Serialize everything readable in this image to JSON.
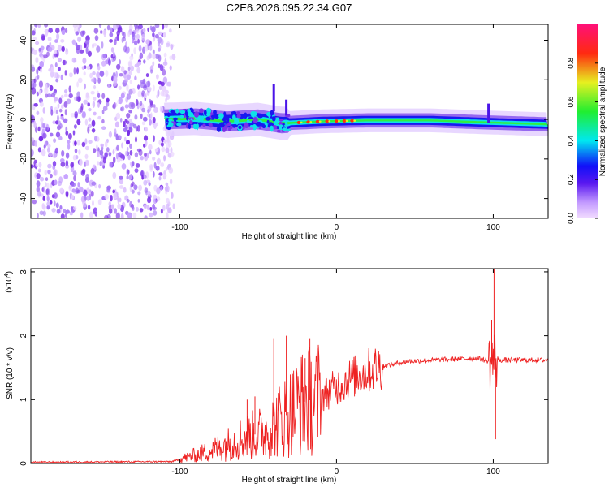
{
  "title": "C2E6.2026.095.22.34.G07",
  "chart_data": [
    {
      "type": "heatmap",
      "id": "spectrogram",
      "xlabel": "Height of straight line (km)",
      "ylabel": "Frequency (Hz)",
      "xlim": [
        -195,
        135
      ],
      "ylim": [
        -50,
        48
      ],
      "xticks": [
        -100,
        0,
        100
      ],
      "yticks": [
        -40,
        -20,
        0,
        20,
        40
      ],
      "noise_region": [
        -195,
        -110
      ],
      "tone_ridge": [
        {
          "x": -110,
          "y": 0
        },
        {
          "x": -90,
          "y": 0.5
        },
        {
          "x": -70,
          "y": -1
        },
        {
          "x": -50,
          "y": 0
        },
        {
          "x": -35,
          "y": -2
        },
        {
          "x": -10,
          "y": -1
        },
        {
          "x": 20,
          "y": -0.5
        },
        {
          "x": 60,
          "y": -0.5
        },
        {
          "x": 95,
          "y": -1.5
        },
        {
          "x": 135,
          "y": -2.5
        }
      ],
      "colorbar": {
        "label": "Normalized spectral amplitude",
        "range": [
          0,
          1
        ],
        "ticks": [
          0.0,
          0.2,
          0.4,
          0.6,
          0.8
        ]
      }
    },
    {
      "type": "line",
      "id": "snr",
      "xlabel": "Height of straight line (km)",
      "ylabel": "SNR (10 * v/v)",
      "multiplier": "(x10",
      "multiplier_exp": "4",
      "multiplier_close": ")",
      "color": "#ee2222",
      "xlim": [
        -195,
        135
      ],
      "ylim": [
        0,
        3.05
      ],
      "xticks": [
        -100,
        0,
        100
      ],
      "yticks": [
        0,
        1,
        2,
        3
      ],
      "envelope": [
        {
          "x": -195,
          "y": 0.02
        },
        {
          "x": -105,
          "y": 0.03
        },
        {
          "x": -95,
          "y": 0.1
        },
        {
          "x": -80,
          "y": 0.2
        },
        {
          "x": -60,
          "y": 0.4
        },
        {
          "x": -45,
          "y": 0.5
        },
        {
          "x": -35,
          "y": 0.7
        },
        {
          "x": -22,
          "y": 0.95
        },
        {
          "x": -10,
          "y": 1.05
        },
        {
          "x": 0,
          "y": 1.2
        },
        {
          "x": 10,
          "y": 1.35
        },
        {
          "x": 25,
          "y": 1.5
        },
        {
          "x": 45,
          "y": 1.6
        },
        {
          "x": 90,
          "y": 1.65
        },
        {
          "x": 97,
          "y": 1.6
        },
        {
          "x": 103,
          "y": 1.62
        },
        {
          "x": 135,
          "y": 1.62
        }
      ],
      "spikes": [
        {
          "x": -57,
          "y": 1.0
        },
        {
          "x": -52,
          "y": 1.05
        },
        {
          "x": -40,
          "y": 1.95
        },
        {
          "x": -32,
          "y": 2.0
        },
        {
          "x": -20,
          "y": 1.65
        },
        {
          "x": -17,
          "y": 1.95
        },
        {
          "x": 99,
          "y": 2.25
        },
        {
          "x": 100.5,
          "y": 3.05
        },
        {
          "x": 101.5,
          "y": 0.38
        }
      ]
    }
  ]
}
